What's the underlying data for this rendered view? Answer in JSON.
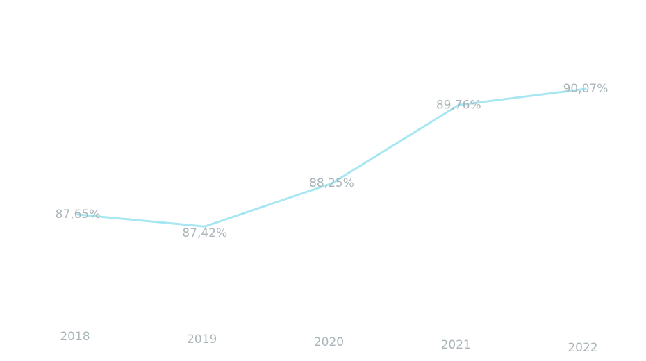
{
  "chart_data": {
    "type": "line",
    "title": "",
    "xlabel": "",
    "ylabel": "",
    "categories": [
      "2018",
      "2019",
      "2020",
      "2021",
      "2022"
    ],
    "series": [
      {
        "values": [
          87.65,
          87.42,
          88.25,
          89.76,
          90.07
        ],
        "data_labels": [
          "87,65%",
          "87,42%",
          "88,25%",
          "89,76%",
          "90,07%"
        ]
      }
    ],
    "ylim": [
      86.5,
      90.5
    ],
    "grid": false,
    "legend": "none",
    "y_axis_visible": false,
    "colors": {
      "line": "#a6e7f2",
      "label_text": "#a9b5b9",
      "tick_text": "#a9b5b9"
    }
  }
}
